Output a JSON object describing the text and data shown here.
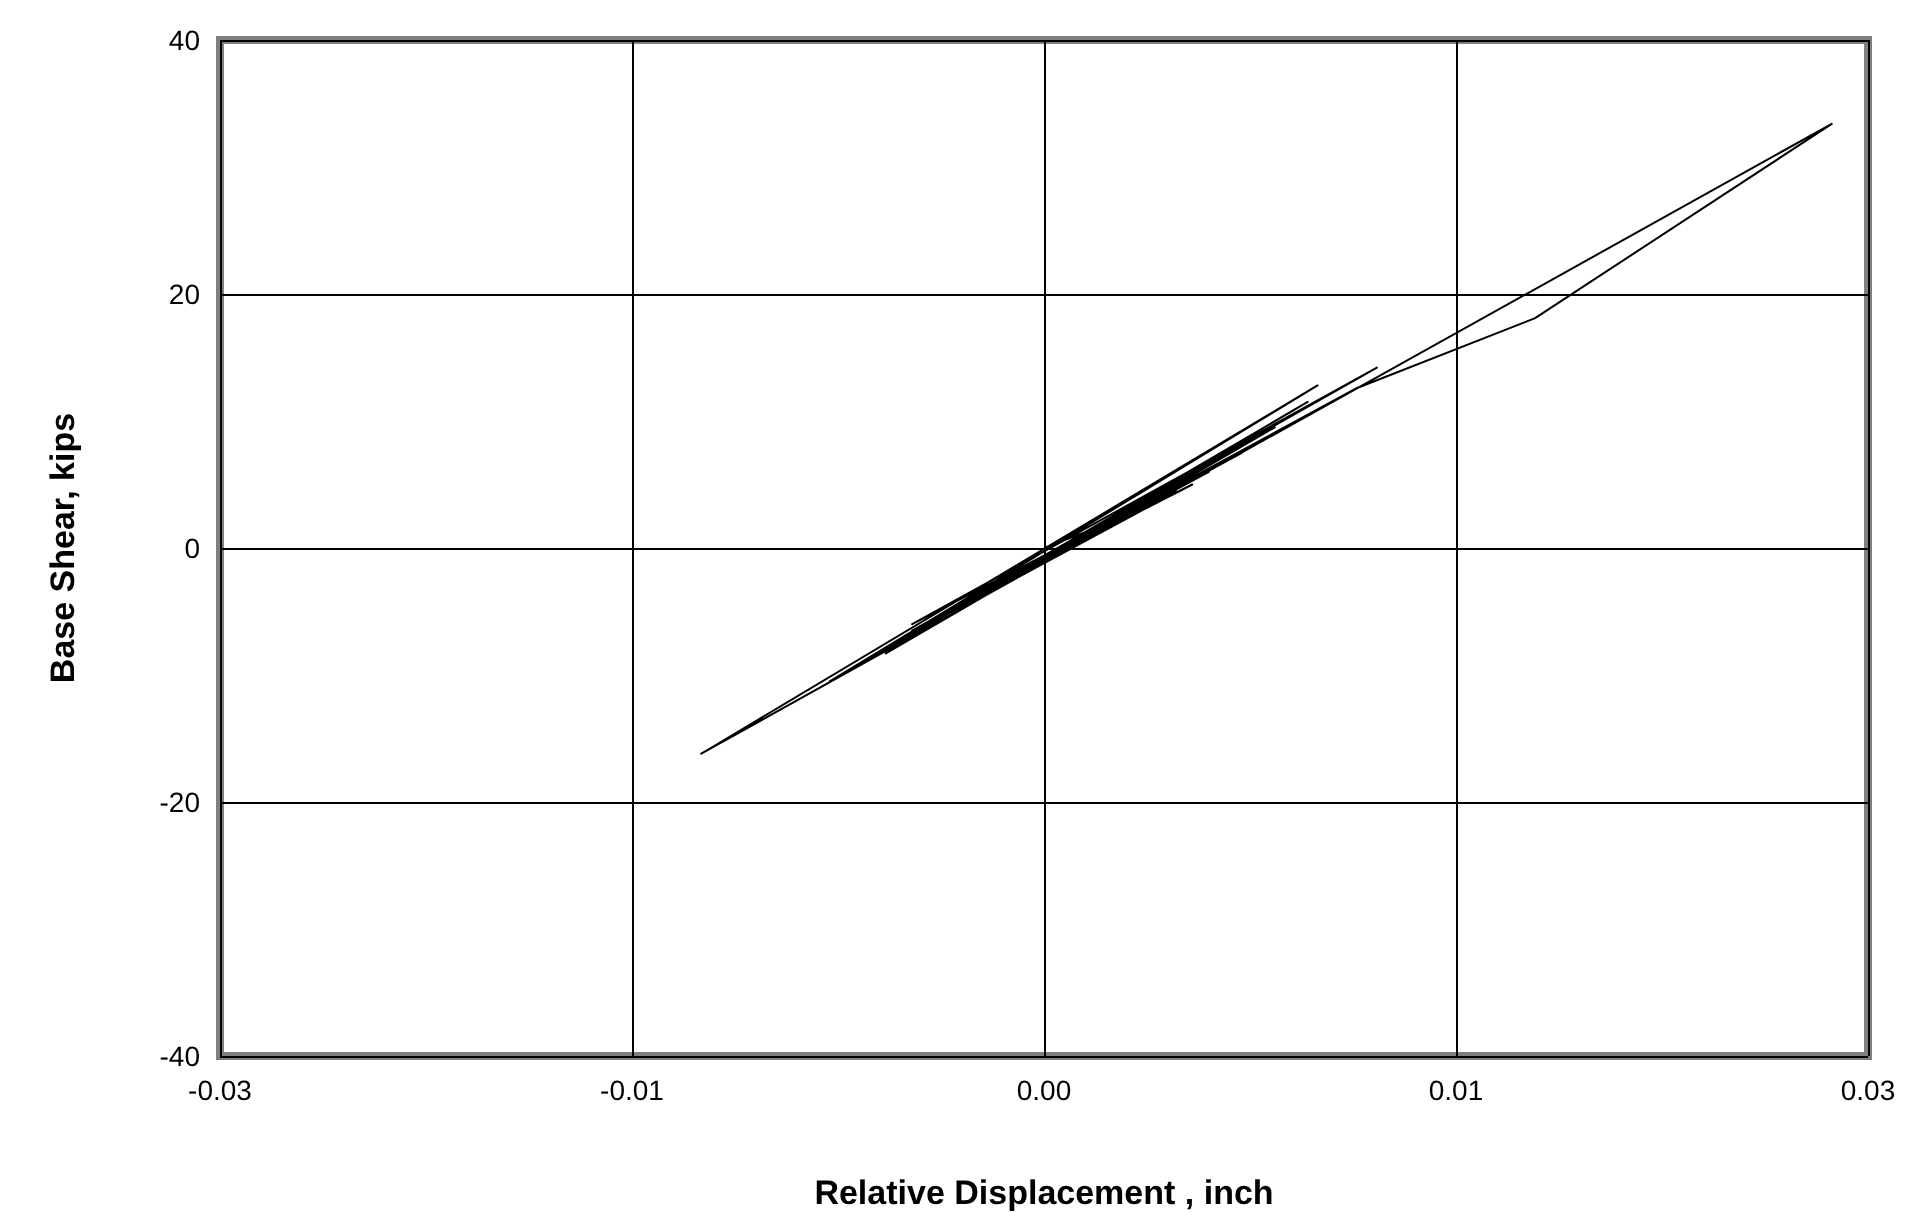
{
  "chart_data": {
    "type": "line",
    "xlabel": "Relative Displacement , inch",
    "ylabel": "Base Shear, kips",
    "xlim": [
      -0.025,
      0.025
    ],
    "xticks": [
      {
        "value": -0.025,
        "label": "-0.03"
      },
      {
        "value": -0.0125,
        "label": "-0.01"
      },
      {
        "value": 0,
        "label": "0.00"
      },
      {
        "value": 0.0125,
        "label": "0.01"
      },
      {
        "value": 0.025,
        "label": "0.03"
      }
    ],
    "ylim": [
      -40,
      40
    ],
    "yticks": [
      -40,
      -20,
      0,
      20,
      40
    ],
    "grid": true,
    "marker": "none",
    "line_style": "solid",
    "series": [
      {
        "color": "#000000",
        "x": [
          0,
          0.003,
          -0.002,
          0.004,
          -0.003,
          0.005,
          -0.004,
          0.006,
          -0.0048,
          0.007,
          -0.0055,
          0.008,
          -0.0065,
          0.0083,
          -0.0104,
          0.0239,
          0.0149,
          0.0095,
          -0.003,
          0.0101,
          -0.004,
          0.006,
          -0.0025,
          0.005,
          -0.002,
          0.0045,
          -0.0015,
          0.004,
          -0.001,
          0.0035,
          -0.0005,
          0.003,
          0,
          0.0025,
          0.0005,
          0.002,
          0.001
        ],
        "values": [
          0,
          3,
          -4,
          5,
          -5.5,
          6.5,
          -6.5,
          8,
          -8.3,
          9.5,
          -9,
          11.5,
          -10.5,
          12.8,
          -16.2,
          33.4,
          18.1,
          12.6,
          -5,
          14.2,
          -6,
          7.5,
          -4.5,
          6,
          -3.5,
          5,
          -3,
          4.5,
          -2.5,
          4,
          -1.5,
          3,
          -1,
          2.5,
          -0.5,
          2,
          0.5
        ]
      }
    ]
  }
}
